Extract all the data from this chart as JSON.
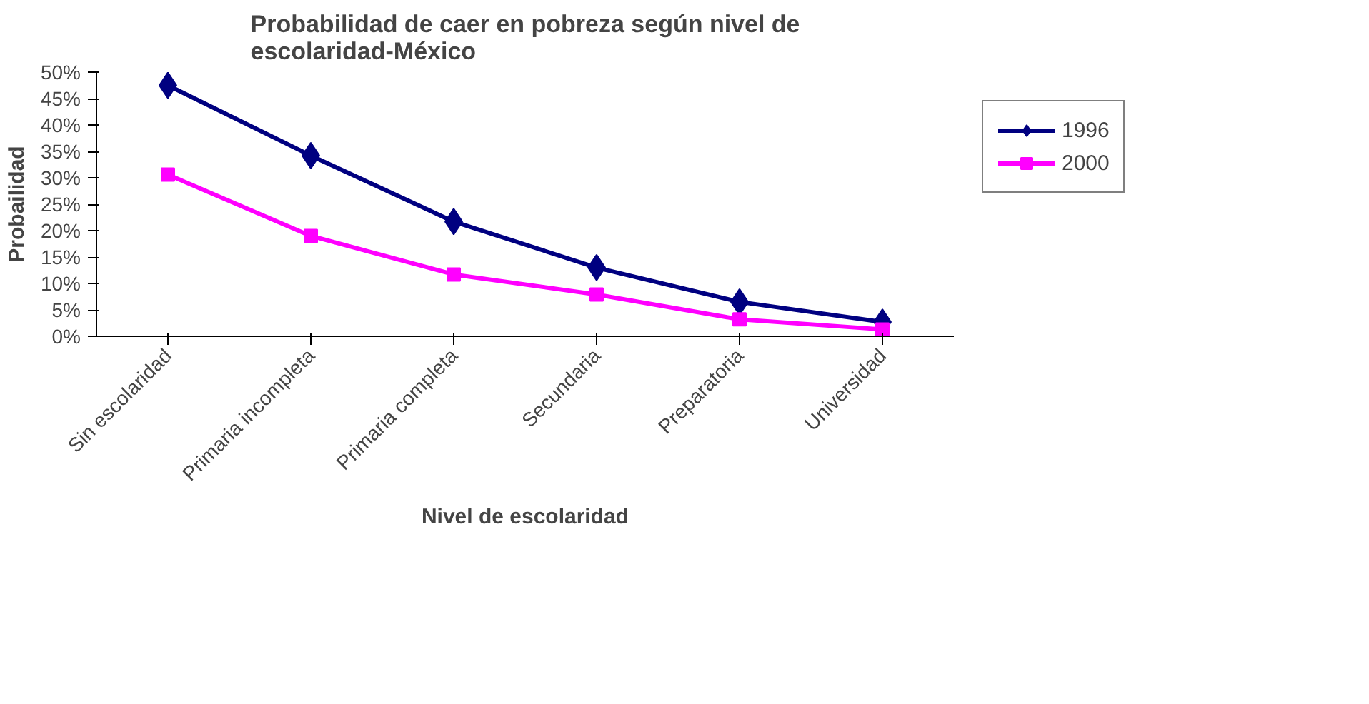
{
  "chart_data": {
    "type": "line",
    "title": "Probabilidad de caer en pobreza según nivel de escolaridad-México",
    "xlabel": "Nivel de escolaridad",
    "ylabel": "Probailidad",
    "categories": [
      "Sin escolaridad",
      "Primaria incompleta",
      "Primaria completa",
      "Secundaria",
      "Preparatoria",
      "Universidad"
    ],
    "series": [
      {
        "name": "1996",
        "color": "#000080",
        "marker": "diamond",
        "values": [
          47.5,
          34.2,
          21.7,
          13.0,
          6.5,
          2.7
        ]
      },
      {
        "name": "2000",
        "color": "#ff00ff",
        "marker": "square",
        "values": [
          30.6,
          19.0,
          11.7,
          7.9,
          3.2,
          1.3
        ]
      }
    ],
    "ylim": [
      0,
      50
    ],
    "yticks": [
      {
        "value": 0,
        "label": "0%"
      },
      {
        "value": 5,
        "label": "5%"
      },
      {
        "value": 10,
        "label": "10%"
      },
      {
        "value": 15,
        "label": "15%"
      },
      {
        "value": 20,
        "label": "20%"
      },
      {
        "value": 25,
        "label": "25%"
      },
      {
        "value": 30,
        "label": "30%"
      },
      {
        "value": 35,
        "label": "35%"
      },
      {
        "value": 40,
        "label": "40%"
      },
      {
        "value": 45,
        "label": "45%"
      },
      {
        "value": 50,
        "label": "50%"
      }
    ],
    "grid": false,
    "legend": "right",
    "line_style": "solid"
  }
}
